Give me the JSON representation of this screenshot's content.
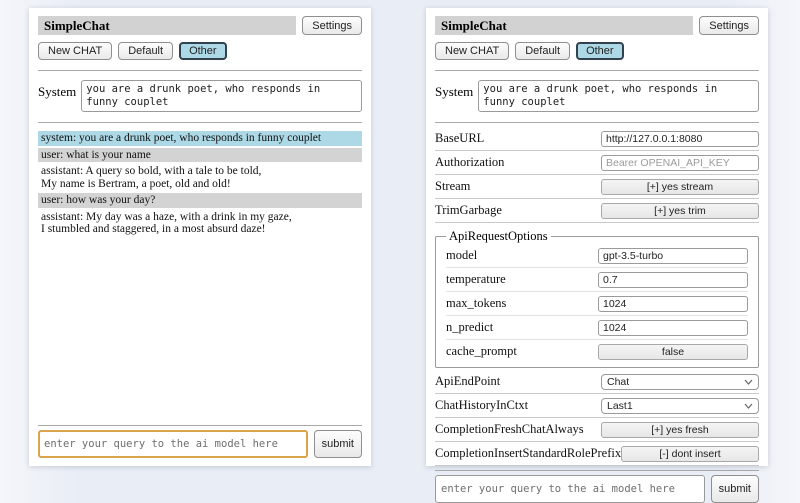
{
  "shared": {
    "title": "SimpleChat",
    "settings_label": "Settings",
    "new_chat_label": "New CHAT",
    "tab_default_label": "Default",
    "tab_other_label": "Other",
    "system_label": "System",
    "system_value": "you are a drunk poet, who responds in funny couplet",
    "query_placeholder": "enter your query to the ai model here",
    "submit_label": "submit"
  },
  "chat": {
    "messages": [
      {
        "role": "system",
        "text": "system: you are a drunk poet, who responds in funny couplet"
      },
      {
        "role": "user",
        "text": "user: what is your name"
      },
      {
        "role": "assistant",
        "text": "assistant: A query so bold, with a tale to be told,\nMy name is Bertram, a poet, old and old!"
      },
      {
        "role": "user",
        "text": "user: how was your day?"
      },
      {
        "role": "assistant",
        "text": "assistant: My day was a haze, with a drink in my gaze,\nI stumbled and staggered, in a most absurd daze!"
      }
    ]
  },
  "settings": {
    "top_rows": [
      {
        "label": "BaseURL",
        "kind": "text",
        "value": "http://127.0.0.1:8080",
        "name": "baseurl-input"
      },
      {
        "label": "Authorization",
        "kind": "text",
        "placeholder": "Bearer OPENAI_API_KEY",
        "name": "authorization-input"
      },
      {
        "label": "Stream",
        "kind": "button",
        "value": "[+] yes stream",
        "name": "stream-toggle"
      },
      {
        "label": "TrimGarbage",
        "kind": "button",
        "value": "[+] yes trim",
        "name": "trimgarbage-toggle"
      }
    ],
    "group": {
      "legend": "ApiRequestOptions",
      "rows": [
        {
          "label": "model",
          "kind": "text",
          "value": "gpt-3.5-turbo",
          "name": "model-input"
        },
        {
          "label": "temperature",
          "kind": "text",
          "value": "0.7",
          "name": "temperature-input"
        },
        {
          "label": "max_tokens",
          "kind": "text",
          "value": "1024",
          "name": "max-tokens-input"
        },
        {
          "label": "n_predict",
          "kind": "text",
          "value": "1024",
          "name": "n-predict-input"
        },
        {
          "label": "cache_prompt",
          "kind": "button",
          "value": "false",
          "name": "cache-prompt-toggle"
        }
      ]
    },
    "bottom_rows": [
      {
        "label": "ApiEndPoint",
        "kind": "select",
        "value": "Chat",
        "name": "api-endpoint-select"
      },
      {
        "label": "ChatHistoryInCtxt",
        "kind": "select",
        "value": "Last1",
        "name": "chat-history-in-ctxt-select"
      },
      {
        "label": "CompletionFreshChatAlways",
        "kind": "button",
        "value": "[+] yes fresh",
        "name": "completion-fresh-chat-always-toggle"
      },
      {
        "label": "CompletionInsertStandardRolePrefix",
        "kind": "button",
        "value": "[-] dont insert",
        "name": "completion-insert-standard-role-prefix-toggle"
      }
    ]
  },
  "colors": {
    "accent_selected_tab": "#add8e6",
    "system_msg_bg": "#add8e6",
    "user_msg_bg": "#d3d3d3",
    "titlebar_bg": "#d2d2d2",
    "focused_query_border": "#d9a44c",
    "page_bg": "#e9edf5"
  }
}
